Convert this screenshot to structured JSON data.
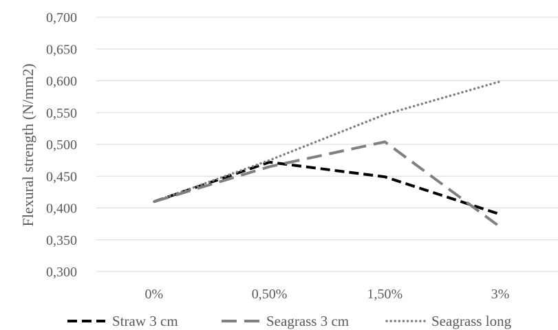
{
  "chart_data": {
    "type": "line",
    "categories": [
      "0%",
      "0,50%",
      "1,50%",
      "3%"
    ],
    "series": [
      {
        "name": "Straw 3 cm",
        "values": [
          0.41,
          0.472,
          0.449,
          0.39
        ],
        "color": "#000000",
        "style": "dashed"
      },
      {
        "name": "Seagrass 3 cm",
        "values": [
          0.41,
          0.465,
          0.504,
          0.37
        ],
        "color": "#808080",
        "style": "long-dashed"
      },
      {
        "name": "Seagrass long",
        "values": [
          0.41,
          0.475,
          0.547,
          0.599
        ],
        "color": "#7f7f7f",
        "style": "dotted"
      }
    ],
    "yticks": [
      "0,300",
      "0,350",
      "0,400",
      "0,450",
      "0,500",
      "0,550",
      "0,600",
      "0,650",
      "0,700"
    ],
    "ylim": [
      0.3,
      0.7
    ],
    "ylabel": "Flexural strength (N/mm2)",
    "xlabel": "",
    "grid": true,
    "legend": "bottom"
  }
}
